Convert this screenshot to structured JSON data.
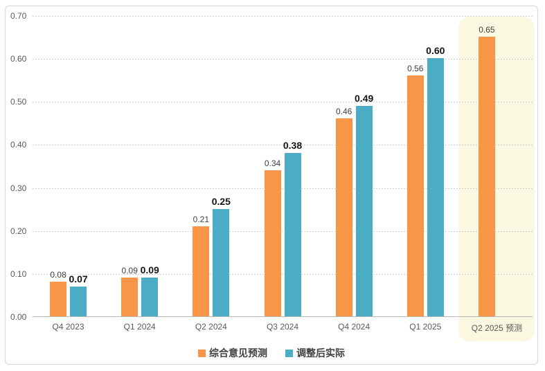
{
  "chart_data": {
    "type": "bar",
    "title": "",
    "xlabel": "",
    "ylabel": "",
    "categories": [
      "Q4 2023",
      "Q1 2024",
      "Q2 2024",
      "Q3 2024",
      "Q4 2024",
      "Q1 2025",
      "Q2 2025 预测"
    ],
    "series": [
      {
        "name": "综合意见预测",
        "color": "#F79646",
        "values": [
          0.08,
          0.09,
          0.21,
          0.34,
          0.46,
          0.56,
          0.65
        ]
      },
      {
        "name": "调整后实际",
        "color": "#4BACC6",
        "values": [
          0.07,
          0.09,
          0.25,
          0.38,
          0.49,
          0.6,
          null
        ]
      }
    ],
    "ylim": [
      0,
      0.7
    ],
    "yticks": [
      "0.70",
      "0.60",
      "0.50",
      "0.40",
      "0.30",
      "0.20",
      "0.10",
      "0.00"
    ],
    "value_label_decimals": 2,
    "grid": true,
    "gridline_color": "#CFCFCF",
    "axis_color": "#B7B7B7",
    "legend_position": "bottom",
    "highlight": {
      "category": "Q2 2025 预测",
      "color": "#FBF8E1"
    }
  }
}
